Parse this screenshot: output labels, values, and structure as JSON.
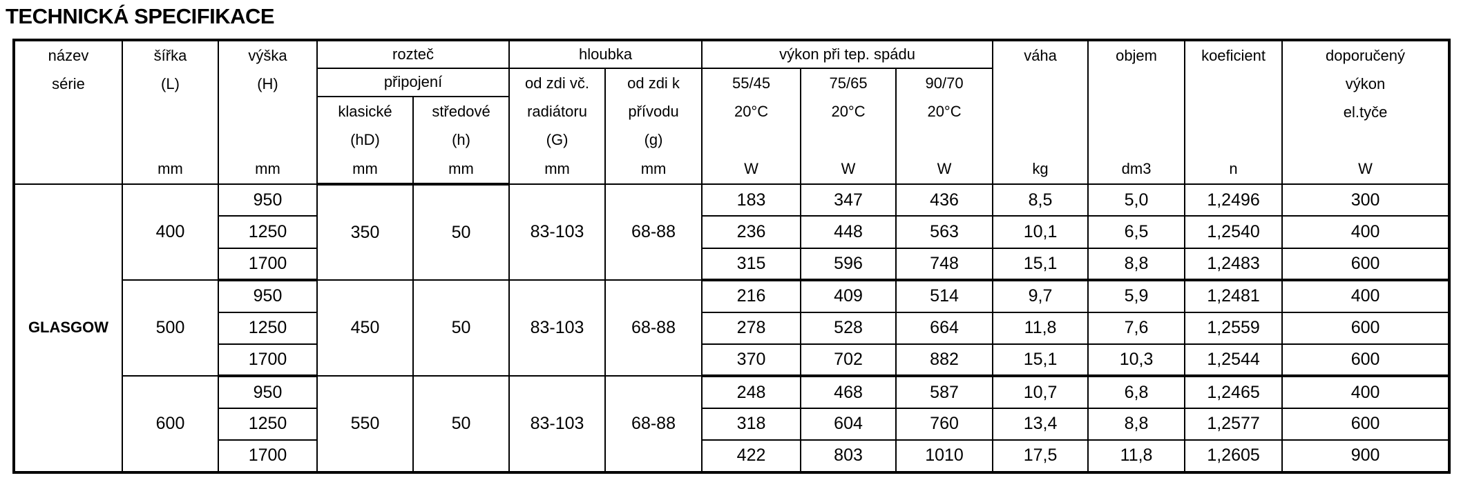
{
  "title": "TECHNICKÁ SPECIFIKACE",
  "header": {
    "nazev": [
      "název",
      "série"
    ],
    "sirka": [
      "šířka",
      "(L)",
      "mm"
    ],
    "vyska": [
      "výška",
      "(H)",
      "mm"
    ],
    "roztec": "rozteč",
    "pripojeni": "připojení",
    "klasicke": [
      "klasické",
      "(hD)",
      "mm"
    ],
    "stredove": [
      "středové",
      "(h)",
      "mm"
    ],
    "hloubka": "hloubka",
    "od_zdi_vc": [
      "od zdi  vč.",
      "radiátoru",
      "(G)",
      "mm"
    ],
    "od_zdi_k": [
      "od zdi  k",
      "přívodu",
      "(g)",
      "mm"
    ],
    "vykon": "výkon při tep.  spádu",
    "v55": [
      "55/45",
      "20°C",
      "W"
    ],
    "v75": [
      "75/65",
      "20°C",
      "W"
    ],
    "v90": [
      "90/70",
      "20°C",
      "W"
    ],
    "vaha": [
      "váha",
      "kg"
    ],
    "objem": [
      "objem",
      "dm3"
    ],
    "koeficient": [
      "koeficient",
      "n"
    ],
    "doporuceny": [
      "doporučený",
      "výkon",
      "el.tyče",
      "W"
    ]
  },
  "series": "GLASGOW",
  "groups": [
    {
      "sirka": "400",
      "klasicke": "350",
      "stredove": "50",
      "G": "83-103",
      "g": "68-88",
      "rows": [
        [
          "950",
          "183",
          "347",
          "436",
          "8,5",
          "5,0",
          "1,2496",
          "300"
        ],
        [
          "1250",
          "236",
          "448",
          "563",
          "10,1",
          "6,5",
          "1,2540",
          "400"
        ],
        [
          "1700",
          "315",
          "596",
          "748",
          "15,1",
          "8,8",
          "1,2483",
          "600"
        ]
      ]
    },
    {
      "sirka": "500",
      "klasicke": "450",
      "stredove": "50",
      "G": "83-103",
      "g": "68-88",
      "rows": [
        [
          "950",
          "216",
          "409",
          "514",
          "9,7",
          "5,9",
          "1,2481",
          "400"
        ],
        [
          "1250",
          "278",
          "528",
          "664",
          "11,8",
          "7,6",
          "1,2559",
          "600"
        ],
        [
          "1700",
          "370",
          "702",
          "882",
          "15,1",
          "10,3",
          "1,2544",
          "600"
        ]
      ]
    },
    {
      "sirka": "600",
      "klasicke": "550",
      "stredove": "50",
      "G": "83-103",
      "g": "68-88",
      "rows": [
        [
          "950",
          "248",
          "468",
          "587",
          "10,7",
          "6,8",
          "1,2465",
          "400"
        ],
        [
          "1250",
          "318",
          "604",
          "760",
          "13,4",
          "8,8",
          "1,2577",
          "600"
        ],
        [
          "1700",
          "422",
          "803",
          "1010",
          "17,5",
          "11,8",
          "1,2605",
          "900"
        ]
      ]
    }
  ]
}
